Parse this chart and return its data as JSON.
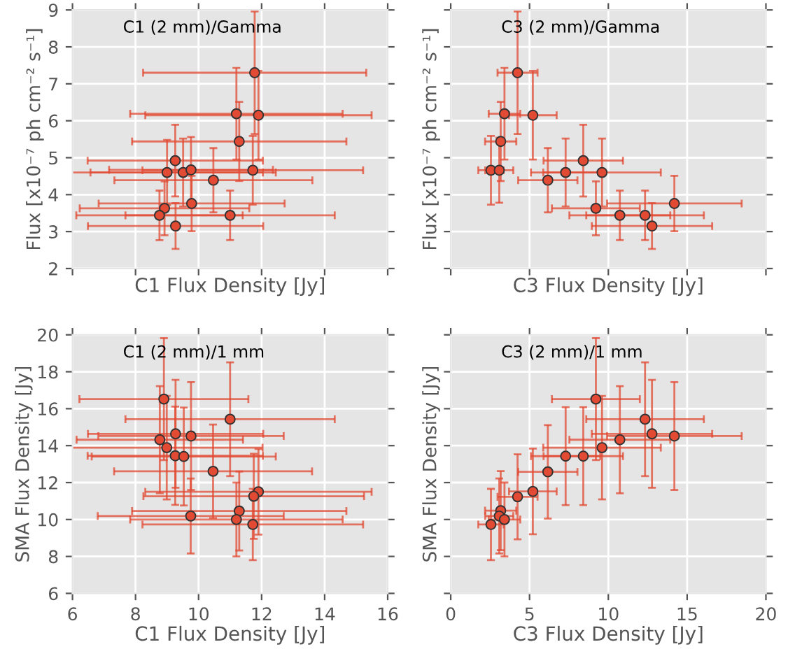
{
  "chart_data": [
    {
      "type": "scatter",
      "xlabel": "C1 Flux Density [Jy]",
      "ylabel": "Flux [x10⁻⁷ ph cm⁻² s⁻¹]",
      "annotations": [
        "C1 (2 mm)/Gamma"
      ],
      "xlim": [
        6,
        16
      ],
      "xticks": [
        6,
        8,
        10,
        12,
        14,
        16
      ],
      "ylim": [
        2,
        9
      ],
      "yticks": [
        2,
        3,
        4,
        5,
        6,
        7,
        8,
        9
      ],
      "tick_labels": "y",
      "grid": true,
      "marker": "circle",
      "x": [
        11.78,
        11.2,
        11.9,
        11.29,
        9.26,
        9.0,
        9.51,
        9.76,
        11.72,
        10.47,
        8.92,
        9.78,
        8.76,
        11.0,
        9.27
      ],
      "series": [
        {
          "color": "#e24a33",
          "values": [
            7.3,
            6.19,
            6.15,
            5.44,
            4.92,
            4.6,
            4.6,
            4.67,
            4.66,
            4.39,
            3.63,
            3.76,
            3.44,
            3.44,
            3.15
          ],
          "errors": [
            1.66,
            1.24,
            1.2,
            1.07,
            0.97,
            0.88,
            0.92,
            0.89,
            0.93,
            0.87,
            0.73,
            0.75,
            0.67,
            0.67,
            0.62
          ],
          "xerrors": [
            3.54,
            3.37,
            3.59,
            3.4,
            2.78,
            3.04,
            2.94,
            2.6,
            3.5,
            3.14,
            2.69,
            2.95,
            2.64,
            3.32,
            2.78
          ]
        }
      ]
    },
    {
      "type": "scatter",
      "xlabel": "C3 Flux Density [Jy]",
      "ylabel": "Flux [x10⁻⁷ ph cm⁻² s⁻¹]",
      "annotations": [
        "C3 (2 mm)/Gamma"
      ],
      "xlim": [
        0,
        20
      ],
      "xticks": [
        0,
        5,
        10,
        15,
        20
      ],
      "ylim": [
        2,
        9
      ],
      "yticks": [
        2,
        3,
        4,
        5,
        6,
        7,
        8,
        9
      ],
      "tick_labels": false,
      "grid": true,
      "marker": "circle",
      "x": [
        4.24,
        3.41,
        5.21,
        3.17,
        8.41,
        2.55,
        3.08,
        7.29,
        9.6,
        6.16,
        9.21,
        14.19,
        10.73,
        12.33,
        12.77
      ],
      "series": [
        {
          "color": "#e24a33",
          "values": [
            7.3,
            6.19,
            6.15,
            5.44,
            4.92,
            4.66,
            4.66,
            4.6,
            4.6,
            4.39,
            3.63,
            3.76,
            3.44,
            3.44,
            3.15
          ],
          "errors": [
            1.66,
            1.24,
            1.2,
            1.07,
            0.97,
            0.93,
            0.88,
            0.92,
            0.92,
            0.87,
            0.73,
            0.75,
            0.67,
            0.67,
            0.62
          ],
          "xerrors": [
            1.27,
            1.0,
            1.51,
            0.99,
            2.52,
            0.8,
            0.89,
            2.2,
            3.73,
            1.88,
            2.79,
            4.27,
            3.2,
            3.73,
            3.82
          ]
        }
      ]
    },
    {
      "type": "scatter",
      "xlabel": "C1 Flux Density [Jy]",
      "ylabel": "SMA Flux Density [Jy]",
      "annotations": [
        "C1 (2 mm)/1 mm"
      ],
      "xlim": [
        6,
        16
      ],
      "xticks": [
        6,
        8,
        10,
        12,
        14,
        16
      ],
      "ylim": [
        6,
        20
      ],
      "yticks": [
        6,
        8,
        10,
        12,
        14,
        16,
        18,
        20
      ],
      "grid": true,
      "marker": "circle",
      "x": [
        8.9,
        11.0,
        8.77,
        9.27,
        9.76,
        8.99,
        9.26,
        9.53,
        10.46,
        11.9,
        11.75,
        11.29,
        9.75,
        11.2,
        11.72
      ],
      "series": [
        {
          "color": "#e24a33",
          "values": [
            16.52,
            15.43,
            14.32,
            14.64,
            14.52,
            13.89,
            13.45,
            13.41,
            12.61,
            11.5,
            11.26,
            10.46,
            10.19,
            10.0,
            9.73
          ],
          "errors": [
            3.3,
            3.08,
            2.9,
            2.92,
            2.92,
            2.8,
            2.66,
            2.65,
            2.53,
            2.32,
            2.3,
            2.14,
            2.03,
            2.0,
            1.93
          ],
          "xerrors": [
            2.68,
            3.32,
            2.64,
            2.78,
            2.94,
            3.04,
            2.78,
            2.92,
            3.14,
            3.59,
            3.5,
            3.4,
            2.95,
            3.37,
            3.5
          ]
        }
      ]
    },
    {
      "type": "scatter",
      "xlabel": "C3 Flux Density [Jy]",
      "ylabel": "SMA Flux Density [Jy]",
      "annotations": [
        "C3 (2 mm)/1 mm"
      ],
      "xlim": [
        0,
        20
      ],
      "xticks": [
        0,
        5,
        10,
        15,
        20
      ],
      "ylim": [
        6,
        20
      ],
      "yticks": [
        6,
        8,
        10,
        12,
        14,
        16,
        18,
        20
      ],
      "tick_labels": "x",
      "grid": true,
      "marker": "circle",
      "x": [
        9.21,
        12.33,
        12.77,
        14.19,
        10.73,
        9.6,
        7.29,
        8.41,
        6.16,
        5.21,
        4.24,
        3.17,
        3.08,
        3.41,
        2.55
      ],
      "series": [
        {
          "color": "#e24a33",
          "values": [
            16.52,
            15.43,
            14.64,
            14.52,
            14.32,
            13.89,
            13.43,
            13.43,
            12.58,
            11.52,
            11.23,
            10.48,
            10.19,
            10.0,
            9.73
          ],
          "errors": [
            3.3,
            3.08,
            2.92,
            2.92,
            2.9,
            2.8,
            2.65,
            2.65,
            2.53,
            2.32,
            2.3,
            2.14,
            2.03,
            2.0,
            1.93
          ],
          "xerrors": [
            2.79,
            3.73,
            3.82,
            4.27,
            3.2,
            3.73,
            2.2,
            2.52,
            1.88,
            1.51,
            1.27,
            0.99,
            0.89,
            1.0,
            0.8
          ]
        }
      ]
    }
  ]
}
